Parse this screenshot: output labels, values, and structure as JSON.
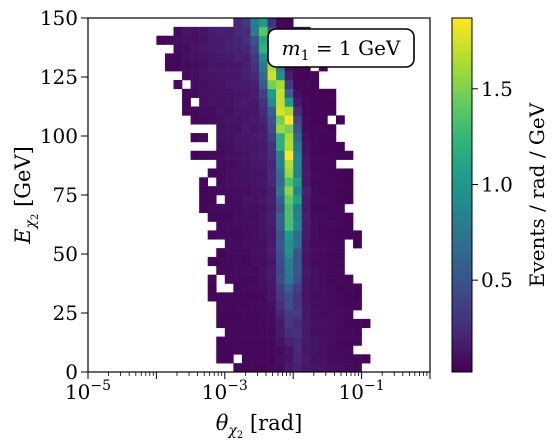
{
  "chart_data": {
    "type": "heatmap",
    "annotation": {
      "prefix": "m",
      "sub": "1",
      "rest": " = 1 GeV"
    },
    "xlabel": {
      "sym": "θ",
      "sub": "χ",
      "subsub": "2",
      "unit": " [rad]"
    },
    "ylabel": {
      "sym": "E",
      "sub": "χ",
      "subsub": "2",
      "unit": "  [GeV]"
    },
    "xlog": true,
    "xlim": [
      1e-05,
      1
    ],
    "ylim": [
      0,
      150
    ],
    "xticks": [
      {
        "value": 1e-05,
        "base": "10",
        "exp": "−5"
      },
      {
        "value": 0.001,
        "base": "10",
        "exp": "−3"
      },
      {
        "value": 0.1,
        "base": "10",
        "exp": "−1"
      }
    ],
    "yticks": [
      {
        "value": 0,
        "label": "0"
      },
      {
        "value": 25,
        "label": "25"
      },
      {
        "value": 50,
        "label": "50"
      },
      {
        "value": 75,
        "label": "75"
      },
      {
        "value": 100,
        "label": "100"
      },
      {
        "value": 125,
        "label": "125"
      },
      {
        "value": 150,
        "label": "150"
      }
    ],
    "colorbar": {
      "label": "Events / rad / GeV",
      "range": [
        0.02,
        1.87
      ],
      "ticks": [
        {
          "value": 0.5,
          "label": "0.5"
        },
        {
          "value": 1.0,
          "label": "1.0"
        },
        {
          "value": 1.5,
          "label": "1.5"
        }
      ],
      "colormap": [
        "#440154",
        "#482878",
        "#3e4989",
        "#31688e",
        "#26828e",
        "#1f9e89",
        "#35b779",
        "#6ece58",
        "#b5de2b",
        "#fde725"
      ]
    },
    "grid": false,
    "bins": {
      "x_edges_log10": [
        -5,
        0
      ],
      "nx": 40,
      "y_edges": [
        0,
        150
      ],
      "ny": 40
    },
    "band": {
      "description_points": [
        {
          "E": 148,
          "theta": 0.0035,
          "value": 0.9
        },
        {
          "E": 135,
          "theta": 0.0045,
          "value": 1.2
        },
        {
          "E": 125,
          "theta": 0.0055,
          "value": 1.5
        },
        {
          "E": 110,
          "theta": 0.0075,
          "value": 1.87
        },
        {
          "E": 90,
          "theta": 0.009,
          "value": 1.6
        },
        {
          "E": 70,
          "theta": 0.0095,
          "value": 1.3
        },
        {
          "E": 50,
          "theta": 0.009,
          "value": 0.9
        },
        {
          "E": 30,
          "theta": 0.009,
          "value": 0.4
        },
        {
          "E": 10,
          "theta": 0.01,
          "value": 0.1
        }
      ]
    }
  }
}
